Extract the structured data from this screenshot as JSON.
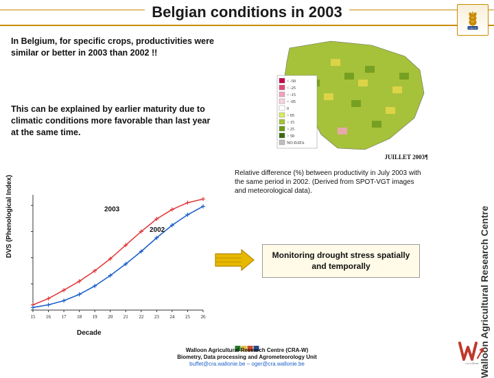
{
  "title": "Belgian conditions in 2003",
  "sidebar_label": "Walloon Agricultural Research Centre",
  "para1": "In Belgium, for specific crops, productivities were similar or better in 2003 than 2002 !!",
  "para2": "This can be explained by earlier maturity due to climatic conditions more favorable than last year at the same time.",
  "map": {
    "caption_label": "JUILLET 2003¶",
    "legend_items": [
      {
        "label": "< -50",
        "color": "#c7004c"
      },
      {
        "label": "< -25",
        "color": "#e04a7a"
      },
      {
        "label": "< -15",
        "color": "#f2a3c0"
      },
      {
        "label": "< -05",
        "color": "#f7d4e0"
      },
      {
        "label": "0",
        "color": "#ffffff"
      },
      {
        "label": "> 05",
        "color": "#d8e86a"
      },
      {
        "label": "> 15",
        "color": "#a6c23a"
      },
      {
        "label": "> 25",
        "color": "#6d9a1f"
      },
      {
        "label": "> 50",
        "color": "#3a6b0e"
      },
      {
        "label": "NO DATA",
        "color": "#bfbfbf"
      }
    ],
    "dominant_color": "#a6c23a",
    "spot_colors": [
      "#e6d64a",
      "#6d9a1f",
      "#f2a3c0"
    ]
  },
  "map_caption": "Relative difference (%) between productivity in July 2003 with the same period in 2002. (Derived from SPOT-VGT images and meteorological data).",
  "chart": {
    "type": "line",
    "ylabel": "DVS (Phenological Index)",
    "xlabel": "Decade",
    "xticks": [
      "15",
      "16",
      "17",
      "18",
      "19",
      "20",
      "21",
      "22",
      "23",
      "24",
      "25",
      "26"
    ],
    "ylim": [
      0,
      2.2
    ],
    "series": [
      {
        "name": "2003",
        "color": "#e03a3a",
        "y": [
          0.1,
          0.22,
          0.38,
          0.55,
          0.75,
          0.98,
          1.24,
          1.5,
          1.74,
          1.92,
          2.05,
          2.12
        ]
      },
      {
        "name": "2002",
        "color": "#1a5fc9",
        "y": [
          0.05,
          0.1,
          0.18,
          0.3,
          0.46,
          0.66,
          0.88,
          1.12,
          1.38,
          1.62,
          1.82,
          1.98
        ]
      }
    ],
    "axis_color": "#333333",
    "marker": "plus",
    "line_width": 1.6,
    "label_fontsize": 10
  },
  "callout": "Monitoring drought stress spatially and temporally",
  "arrow_color": "#e6b800",
  "arrow_border": "#b58900",
  "footer": {
    "line1": "Walloon Agricultural Research Centre (CRA-W)",
    "line2": "Biometry, Data processing and Agrometeorology Unit",
    "line3": "buffet@cra.wallonie.be – oger@cra.wallonie.be",
    "squares": [
      "#2a7a2a",
      "#e0c040",
      "#d04a2a",
      "#2a4a8a"
    ]
  },
  "logo_colors": {
    "wheat": "#c88a00",
    "red": "#c0392b",
    "box_border": "#c88a00"
  }
}
